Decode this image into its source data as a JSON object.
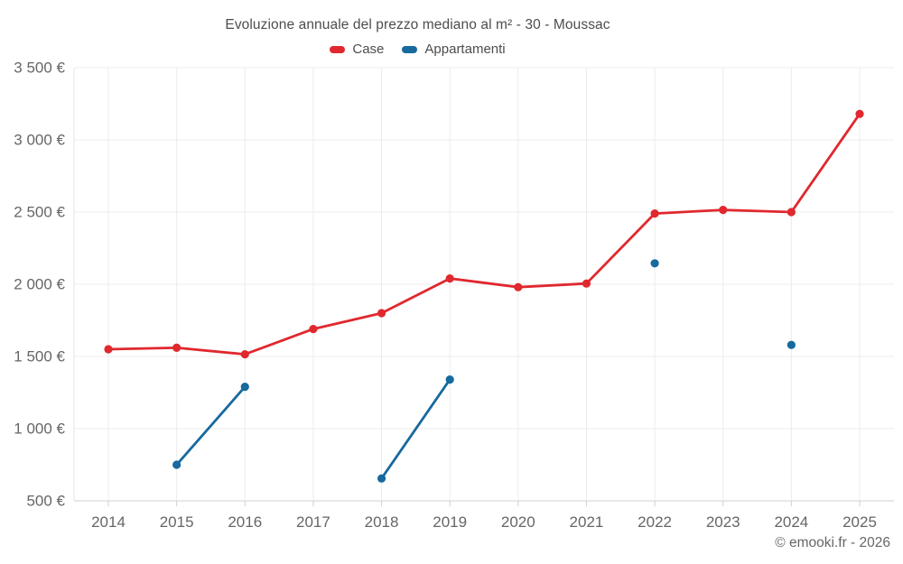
{
  "footer": {
    "copyright": "© emooki.fr - 2026"
  },
  "palette": {
    "case_red": "#e0282e",
    "appartamenti_blue": "#17699e",
    "gridline": "#ececec",
    "axis_line": "#cfcfcf",
    "axis_line_left": "#e7e7e7",
    "title_text": "#4d4d4d",
    "tick_text": "#666666"
  },
  "chart_data": {
    "type": "line",
    "title": "Evoluzione annuale del prezzo mediano al m² - 30 - Moussac",
    "categories": [
      "2014",
      "2015",
      "2016",
      "2017",
      "2018",
      "2019",
      "2020",
      "2021",
      "2022",
      "2023",
      "2024",
      "2025"
    ],
    "series": [
      {
        "name": "Case",
        "color": "#e0282e",
        "values": [
          1550,
          1560,
          1515,
          1690,
          1800,
          2040,
          1980,
          2005,
          2490,
          2515,
          2500,
          3180
        ]
      },
      {
        "name": "Appartamenti",
        "color": "#17699e",
        "values": [
          null,
          750,
          1290,
          null,
          655,
          1340,
          null,
          null,
          2145,
          null,
          1580,
          null
        ]
      }
    ],
    "xlabel": "",
    "ylabel": "",
    "y_unit": "€",
    "y_ticks": [
      500,
      1000,
      1500,
      2000,
      2500,
      3000,
      3500
    ],
    "ylim": [
      500,
      3500
    ],
    "grid": true,
    "legend_position": "top"
  }
}
